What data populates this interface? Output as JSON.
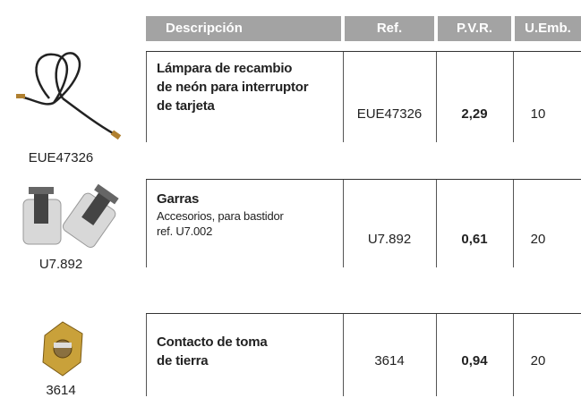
{
  "table": {
    "columns": [
      "Descripción",
      "Ref.",
      "P.V.R.",
      "U.Emb."
    ],
    "rows": [
      {
        "image_label": "EUE47326",
        "title": [
          "Lámpara de recambio",
          "de neón para interruptor",
          "de tarjeta"
        ],
        "ref": "EUE47326",
        "pvr": "2,29",
        "uemb": "10"
      },
      {
        "image_label": "U7.892",
        "title": [
          "Garras"
        ],
        "description": [
          "Accesorios, para bastidor",
          "ref. U7.002"
        ],
        "ref": "U7.892",
        "pvr": "0,61",
        "uemb": "20"
      },
      {
        "image_label": "3614",
        "title": [
          "Contacto de toma",
          "de tierra"
        ],
        "ref": "3614",
        "pvr": "0,94",
        "uemb": "20"
      }
    ]
  }
}
